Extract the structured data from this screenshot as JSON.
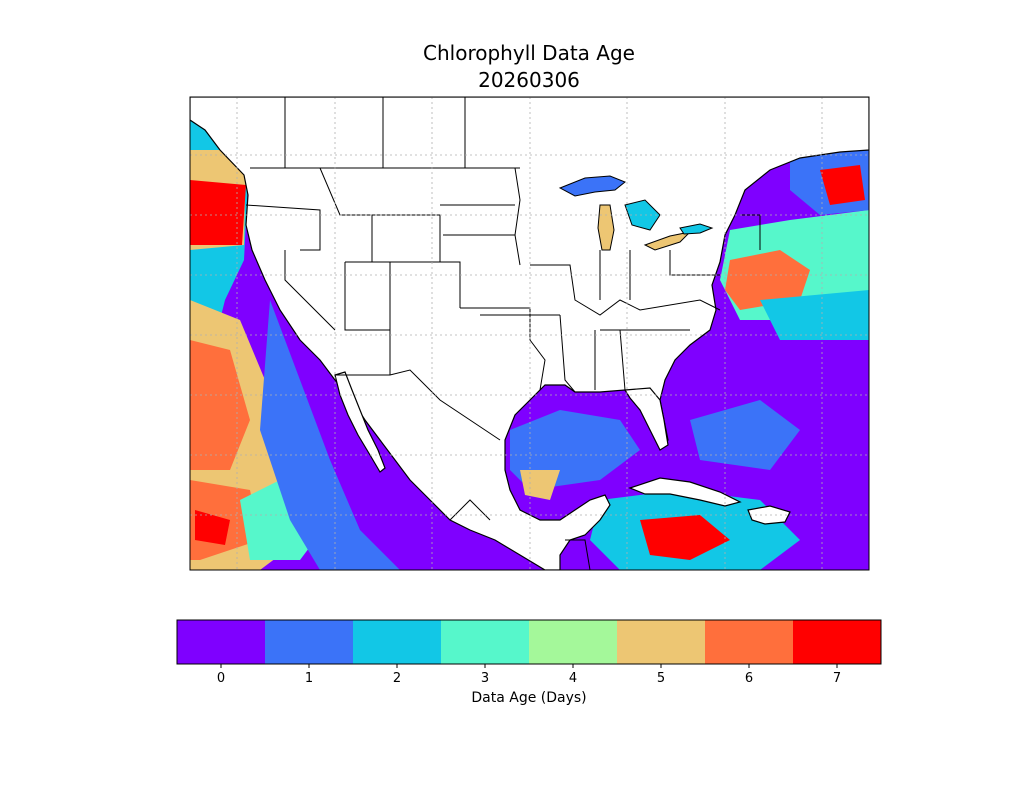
{
  "title": "Chlorophyll Data Age",
  "date": "20260306",
  "colorbar": {
    "label": "Data Age (Days)",
    "ticks": [
      "0",
      "1",
      "2",
      "3",
      "4",
      "5",
      "6",
      "7"
    ],
    "colors": [
      "#7f00ff",
      "#3b73f8",
      "#12c7e6",
      "#56f7cb",
      "#a4f89a",
      "#edc673",
      "#ff6f3c",
      "#ff0000"
    ]
  },
  "map": {
    "region": "Contiguous United States, Mexico, Caribbean",
    "land_color": "#ffffff",
    "border_color": "#000000",
    "graticule": "dotted gray"
  }
}
